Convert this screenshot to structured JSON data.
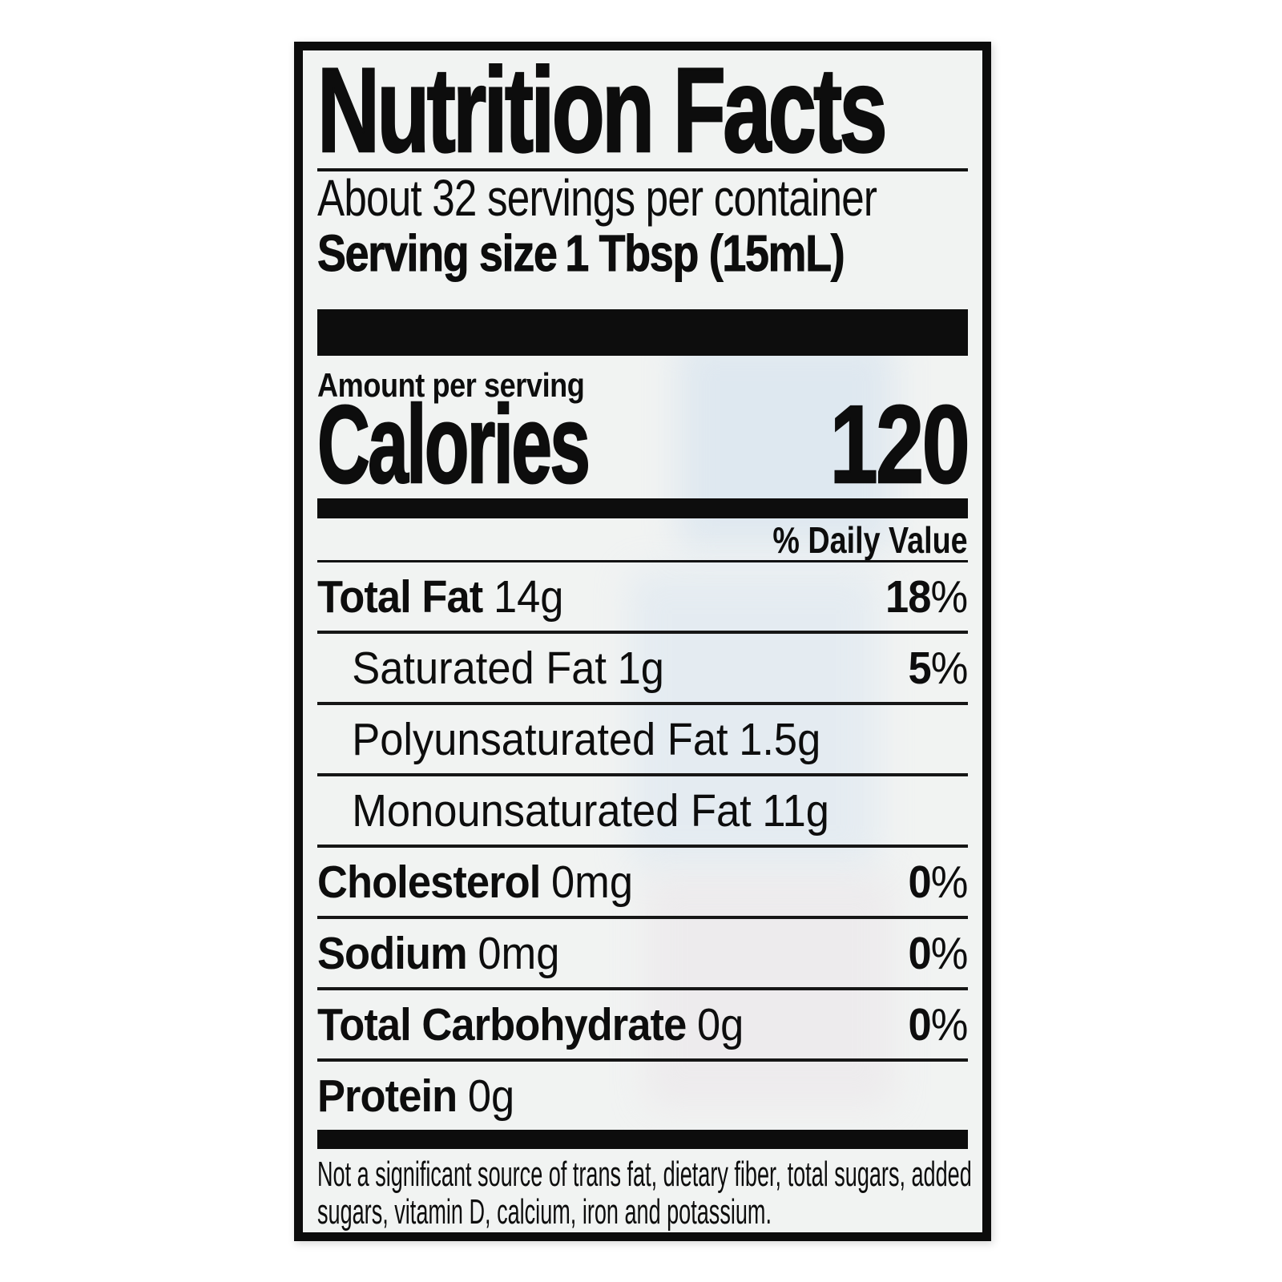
{
  "page": {
    "background_color": "#ffffff"
  },
  "label": {
    "background_color": "#f1f3f2",
    "text_color": "#0d0d0d",
    "title": "Nutrition Facts",
    "servings_per_container": "About 32 servings per container",
    "serving_size_label": "Serving size",
    "serving_size_value": "1 Tbsp (15mL)",
    "amount_per_serving_label": "Amount per serving",
    "calories_label": "Calories",
    "calories_value": "120",
    "daily_value_header": "% Daily Value",
    "percent_sign": "%",
    "rows": [
      {
        "name": "Total Fat",
        "amount": "14g",
        "dv": "18"
      },
      {
        "name": "Saturated Fat",
        "amount": "1g",
        "dv": "5"
      },
      {
        "name": "Polyunsaturated Fat",
        "amount": "1.5g",
        "dv": ""
      },
      {
        "name": "Monounsaturated Fat",
        "amount": "11g",
        "dv": ""
      },
      {
        "name": "Cholesterol",
        "amount": "0mg",
        "dv": "0"
      },
      {
        "name": "Sodium",
        "amount": "0mg",
        "dv": "0"
      },
      {
        "name": "Total Carbohydrate",
        "amount": "0g",
        "dv": "0"
      },
      {
        "name": "Protein",
        "amount": "0g",
        "dv": ""
      }
    ],
    "footnote": "Not a significant source of trans fat, dietary fiber, total sugars, added sugars, vitamin D, calcium, iron and potassium."
  }
}
